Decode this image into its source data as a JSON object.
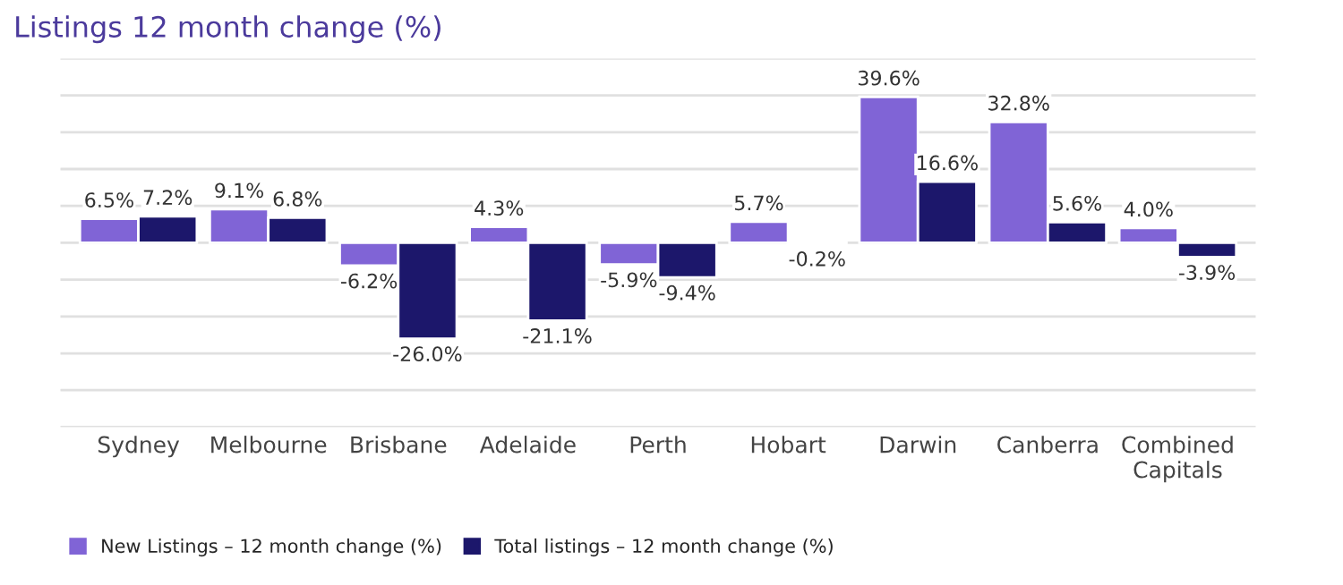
{
  "chart_data": {
    "type": "bar",
    "title": "Listings 12 month change (%)",
    "categories": [
      "Sydney",
      "Melbourne",
      "Brisbane",
      "Adelaide",
      "Perth",
      "Hobart",
      "Darwin",
      "Canberra",
      "Combined\nCapitals"
    ],
    "series": [
      {
        "name": "New Listings – 12 month change (%)",
        "color": "#8064d6",
        "values": [
          6.5,
          9.1,
          -6.2,
          4.3,
          -5.9,
          5.7,
          39.6,
          32.8,
          4.0
        ],
        "value_labels": [
          "6.5%",
          "9.1%",
          "-6.2%",
          "4.3%",
          "-5.9%",
          "5.7%",
          "39.6%",
          "32.8%",
          "4.0%"
        ]
      },
      {
        "name": "Total listings – 12 month change (%)",
        "color": "#1c176b",
        "values": [
          7.2,
          6.8,
          -26.0,
          -21.1,
          -9.4,
          -0.2,
          16.6,
          5.6,
          -3.9
        ],
        "value_labels": [
          "7.2%",
          "6.8%",
          "-26.0%",
          "-21.1%",
          "-9.4%",
          "-0.2%",
          "16.6%",
          "5.6%",
          "-3.9%"
        ]
      }
    ],
    "ylim": [
      -50,
      50
    ],
    "yticks": [
      {
        "value": -50,
        "label": null
      },
      {
        "value": -40,
        "label": null
      },
      {
        "value": -30,
        "label": null
      },
      {
        "value": -20,
        "label": null
      },
      {
        "value": -10,
        "label": null
      },
      {
        "value": 0,
        "label": null
      },
      {
        "value": 10,
        "label": null
      },
      {
        "value": 20,
        "label": null
      },
      {
        "value": 30,
        "label": null
      },
      {
        "value": 40,
        "label": null
      },
      {
        "value": 50,
        "label": null
      }
    ],
    "grid": "y",
    "legend": "bottom left",
    "tick_labels": "x"
  }
}
